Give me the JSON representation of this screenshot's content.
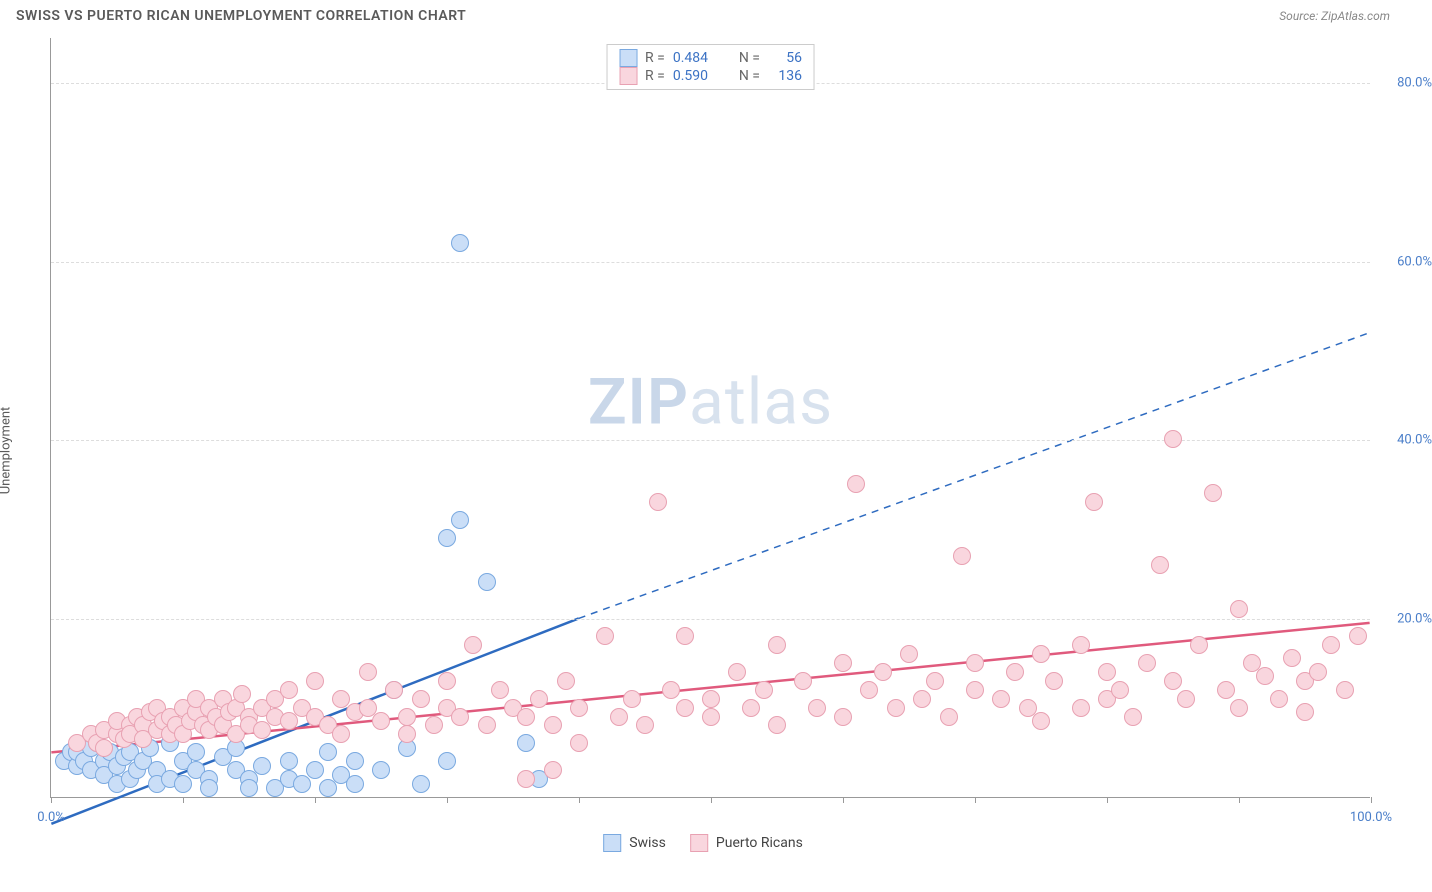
{
  "title": "SWISS VS PUERTO RICAN UNEMPLOYMENT CORRELATION CHART",
  "source_label": "Source:",
  "source_name": "ZipAtlas.com",
  "ylabel": "Unemployment",
  "watermark_bold": "ZIP",
  "watermark_rest": "atlas",
  "chart": {
    "type": "scatter",
    "xlim": [
      0,
      100
    ],
    "ylim": [
      0,
      85
    ],
    "x_tick_step": 10,
    "y_ticks": [
      20,
      40,
      60,
      80
    ],
    "x_labels": [
      {
        "x": 0,
        "text": "0.0%"
      },
      {
        "x": 100,
        "text": "100.0%"
      }
    ],
    "y_tick_suffix": "%",
    "background": "#ffffff",
    "grid_color": "#dddddd",
    "axis_color": "#999999",
    "tick_label_color": "#4a7ec9",
    "marker_radius": 9,
    "marker_stroke_width": 1,
    "series": [
      {
        "name": "Swiss",
        "fill": "#cadef7",
        "stroke": "#7aa9e0",
        "trend_color": "#2e6bc0",
        "trend_width": 2.5,
        "trend": {
          "x1": 0,
          "y1": -3,
          "x2": 40,
          "y2": 20,
          "x2_dash": 100,
          "y2_dash": 52
        },
        "R": "0.484",
        "N": "56",
        "points": [
          [
            1,
            4
          ],
          [
            1.5,
            5
          ],
          [
            2,
            3.5
          ],
          [
            2,
            5
          ],
          [
            2.5,
            4
          ],
          [
            3,
            3
          ],
          [
            3,
            5.5
          ],
          [
            3.5,
            6
          ],
          [
            4,
            4
          ],
          [
            4,
            2.5
          ],
          [
            4.5,
            5
          ],
          [
            5,
            3.5
          ],
          [
            5,
            1.5
          ],
          [
            5.5,
            4.5
          ],
          [
            6,
            5
          ],
          [
            6,
            2
          ],
          [
            6.5,
            3
          ],
          [
            7,
            4
          ],
          [
            7.5,
            5.5
          ],
          [
            8,
            3
          ],
          [
            8,
            1.5
          ],
          [
            9,
            6
          ],
          [
            9,
            2
          ],
          [
            10,
            4
          ],
          [
            10,
            1.5
          ],
          [
            11,
            3
          ],
          [
            11,
            5
          ],
          [
            12,
            2
          ],
          [
            12,
            1
          ],
          [
            13,
            4.5
          ],
          [
            14,
            3
          ],
          [
            14,
            5.5
          ],
          [
            15,
            2
          ],
          [
            15,
            1
          ],
          [
            16,
            3.5
          ],
          [
            17,
            1
          ],
          [
            18,
            4
          ],
          [
            18,
            2
          ],
          [
            19,
            1.5
          ],
          [
            20,
            3
          ],
          [
            21,
            1
          ],
          [
            21,
            5
          ],
          [
            22,
            2.5
          ],
          [
            23,
            1.5
          ],
          [
            23,
            4
          ],
          [
            25,
            3
          ],
          [
            26,
            12
          ],
          [
            27,
            5.5
          ],
          [
            28,
            1.5
          ],
          [
            30,
            4
          ],
          [
            30,
            29
          ],
          [
            31,
            31
          ],
          [
            31,
            62
          ],
          [
            33,
            24
          ],
          [
            36,
            6
          ],
          [
            37,
            2
          ]
        ]
      },
      {
        "name": "Puerto Ricans",
        "fill": "#f9d6de",
        "stroke": "#e8a1b2",
        "trend_color": "#e05a7d",
        "trend_width": 2.5,
        "trend": {
          "x1": 0,
          "y1": 5,
          "x2": 100,
          "y2": 19.5
        },
        "R": "0.590",
        "N": "136",
        "points": [
          [
            2,
            6
          ],
          [
            3,
            7
          ],
          [
            3.5,
            6
          ],
          [
            4,
            7.5
          ],
          [
            4,
            5.5
          ],
          [
            5,
            7
          ],
          [
            5,
            8.5
          ],
          [
            5.5,
            6.5
          ],
          [
            6,
            8
          ],
          [
            6,
            7
          ],
          [
            6.5,
            9
          ],
          [
            7,
            8
          ],
          [
            7,
            6.5
          ],
          [
            7.5,
            9.5
          ],
          [
            8,
            7.5
          ],
          [
            8,
            10
          ],
          [
            8.5,
            8.5
          ],
          [
            9,
            7
          ],
          [
            9,
            9
          ],
          [
            9.5,
            8
          ],
          [
            10,
            10
          ],
          [
            10,
            7
          ],
          [
            10.5,
            8.5
          ],
          [
            11,
            9.5
          ],
          [
            11,
            11
          ],
          [
            11.5,
            8
          ],
          [
            12,
            10
          ],
          [
            12,
            7.5
          ],
          [
            12.5,
            9
          ],
          [
            13,
            8
          ],
          [
            13,
            11
          ],
          [
            13.5,
            9.5
          ],
          [
            14,
            10
          ],
          [
            14,
            7
          ],
          [
            14.5,
            11.5
          ],
          [
            15,
            9
          ],
          [
            15,
            8
          ],
          [
            16,
            10
          ],
          [
            16,
            7.5
          ],
          [
            17,
            11
          ],
          [
            17,
            9
          ],
          [
            18,
            8.5
          ],
          [
            18,
            12
          ],
          [
            19,
            10
          ],
          [
            20,
            9
          ],
          [
            20,
            13
          ],
          [
            21,
            8
          ],
          [
            22,
            11
          ],
          [
            22,
            7
          ],
          [
            23,
            9.5
          ],
          [
            24,
            10
          ],
          [
            24,
            14
          ],
          [
            25,
            8.5
          ],
          [
            26,
            12
          ],
          [
            27,
            9
          ],
          [
            27,
            7
          ],
          [
            28,
            11
          ],
          [
            29,
            8
          ],
          [
            30,
            13
          ],
          [
            30,
            10
          ],
          [
            31,
            9
          ],
          [
            32,
            17
          ],
          [
            33,
            8
          ],
          [
            34,
            12
          ],
          [
            35,
            10
          ],
          [
            36,
            9
          ],
          [
            36,
            2
          ],
          [
            37,
            11
          ],
          [
            38,
            8
          ],
          [
            38,
            3
          ],
          [
            39,
            13
          ],
          [
            40,
            10
          ],
          [
            40,
            6
          ],
          [
            42,
            18
          ],
          [
            43,
            9
          ],
          [
            44,
            11
          ],
          [
            45,
            8
          ],
          [
            46,
            33
          ],
          [
            47,
            12
          ],
          [
            48,
            10
          ],
          [
            48,
            18
          ],
          [
            50,
            11
          ],
          [
            50,
            9
          ],
          [
            52,
            14
          ],
          [
            53,
            10
          ],
          [
            54,
            12
          ],
          [
            55,
            8
          ],
          [
            55,
            17
          ],
          [
            57,
            13
          ],
          [
            58,
            10
          ],
          [
            60,
            15
          ],
          [
            60,
            9
          ],
          [
            61,
            35
          ],
          [
            62,
            12
          ],
          [
            63,
            14
          ],
          [
            64,
            10
          ],
          [
            65,
            16
          ],
          [
            66,
            11
          ],
          [
            67,
            13
          ],
          [
            68,
            9
          ],
          [
            69,
            27
          ],
          [
            70,
            15
          ],
          [
            70,
            12
          ],
          [
            72,
            11
          ],
          [
            73,
            14
          ],
          [
            74,
            10
          ],
          [
            75,
            16
          ],
          [
            75,
            8.5
          ],
          [
            76,
            13
          ],
          [
            78,
            17
          ],
          [
            78,
            10
          ],
          [
            79,
            33
          ],
          [
            80,
            14
          ],
          [
            80,
            11
          ],
          [
            81,
            12
          ],
          [
            82,
            9
          ],
          [
            83,
            15
          ],
          [
            84,
            26
          ],
          [
            85,
            40
          ],
          [
            85,
            13
          ],
          [
            86,
            11
          ],
          [
            87,
            17
          ],
          [
            88,
            34
          ],
          [
            89,
            12
          ],
          [
            90,
            21
          ],
          [
            90,
            10
          ],
          [
            91,
            15
          ],
          [
            92,
            13.5
          ],
          [
            93,
            11
          ],
          [
            94,
            15.5
          ],
          [
            95,
            13
          ],
          [
            95,
            9.5
          ],
          [
            96,
            14
          ],
          [
            97,
            17
          ],
          [
            98,
            12
          ],
          [
            99,
            18
          ]
        ]
      }
    ]
  },
  "legend_top": {
    "r_label": "R =",
    "n_label": "N ="
  },
  "legend_bottom": [
    {
      "label": "Swiss",
      "fill": "#cadef7",
      "stroke": "#7aa9e0"
    },
    {
      "label": "Puerto Ricans",
      "fill": "#f9d6de",
      "stroke": "#e8a1b2"
    }
  ]
}
